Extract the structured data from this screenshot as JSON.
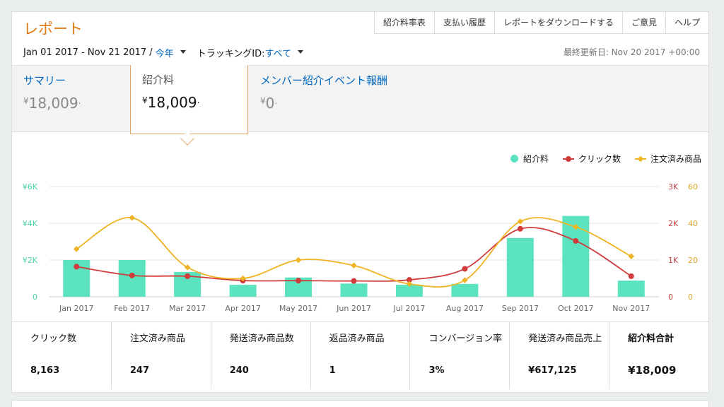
{
  "title": "レポート",
  "nav": [
    "紹介料率表",
    "支払い履歴",
    "レポートをダウンロードする",
    "ご意見",
    "ヘルプ"
  ],
  "date_range": "Jan 01 2017 - Nov 21 2017 /",
  "period": "今年",
  "tracking_label": "トラッキングID:",
  "tracking_value": "すべて",
  "last_updated": "最終更新日: Nov 20 2017 +00:00",
  "summary": [
    {
      "label": "サマリー",
      "currency": "¥",
      "value": "18,009",
      "suffix": "."
    },
    {
      "label": "紹介料",
      "currency": "¥",
      "value": "18,009",
      "suffix": "."
    },
    {
      "label": "メンバー紹介イベント報酬",
      "currency": "¥",
      "value": "0",
      "suffix": "."
    }
  ],
  "stats": [
    {
      "label": "クリック数",
      "value": "8,163"
    },
    {
      "label": "注文済み商品",
      "value": "247"
    },
    {
      "label": "発送済み商品数",
      "value": "240"
    },
    {
      "label": "返品済み商品",
      "value": "1"
    },
    {
      "label": "コンバージョン率",
      "value": "3%"
    },
    {
      "label": "発送済み商品売上",
      "value": "¥617,125"
    },
    {
      "label": "紹介料合計",
      "value": "¥18,009"
    }
  ],
  "chart_data": {
    "type": "bar",
    "categories": [
      "Jan 2017",
      "Feb 2017",
      "Mar 2017",
      "Apr 2017",
      "May 2017",
      "Jun 2017",
      "Jul 2017",
      "Aug 2017",
      "Sep 2017",
      "Oct 2017",
      "Nov 2017"
    ],
    "series": [
      {
        "name": "紹介料",
        "type": "bar",
        "axis": "left",
        "color": "#5be3c0",
        "values": [
          2000,
          2000,
          1350,
          650,
          1050,
          720,
          650,
          700,
          3200,
          4400,
          880
        ]
      },
      {
        "name": "クリック数",
        "type": "line",
        "axis": "right-1",
        "color": "#d03c3c",
        "values": [
          820,
          580,
          560,
          440,
          440,
          430,
          460,
          760,
          1850,
          1520,
          560
        ]
      },
      {
        "name": "注文済み商品",
        "type": "line",
        "axis": "right-2",
        "color": "#f0b323",
        "values": [
          26,
          43,
          16,
          10,
          20,
          17,
          7,
          9,
          41,
          38,
          22
        ]
      }
    ],
    "left_axis": {
      "ticks": [
        "0",
        "¥2K",
        "¥4K",
        "¥6K"
      ],
      "range": [
        0,
        6000
      ],
      "color": "#4ed3a8"
    },
    "right_axis_1": {
      "ticks": [
        "0",
        "1K",
        "2K",
        "3K"
      ],
      "range": [
        0,
        3000
      ],
      "color": "#c94141"
    },
    "right_axis_2": {
      "ticks": [
        "0",
        "20",
        "40",
        "60"
      ],
      "range": [
        0,
        60
      ],
      "color": "#e0a52a"
    },
    "legend_position": "top-right",
    "grid": true
  }
}
